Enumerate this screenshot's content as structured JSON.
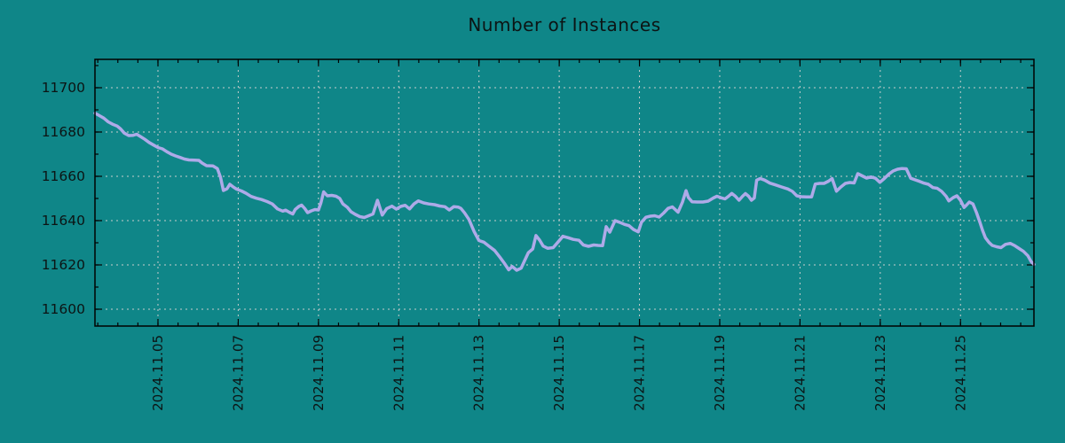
{
  "colors": {
    "background": "#0f8688",
    "line": "#aeaae8",
    "grid": "#c7cdcd",
    "axis": "#000000",
    "text": "#0c1414"
  },
  "chart_data": {
    "type": "line",
    "title": "Number of Instances",
    "xlabel": "",
    "ylabel": "",
    "legend": "none",
    "grid": true,
    "xlim": [
      3.43,
      26.83
    ],
    "ylim": [
      11592.4,
      11712.8
    ],
    "x_axis_unit": "day of November 2024",
    "x_tick_labels": [
      "2024.11.05",
      "2024.11.07",
      "2024.11.09",
      "2024.11.11",
      "2024.11.13",
      "2024.11.15",
      "2024.11.17",
      "2024.11.19",
      "2024.11.21",
      "2024.11.23",
      "2024.11.25"
    ],
    "x_tick_days": [
      5,
      7,
      9,
      11,
      13,
      15,
      17,
      19,
      21,
      23,
      25
    ],
    "x_minor_tick_step_days": 0.5,
    "y_tick_labels": [
      "11600",
      "11620",
      "11640",
      "11660",
      "11680",
      "11700"
    ],
    "y_tick_values": [
      11600,
      11620,
      11640,
      11660,
      11680,
      11700
    ],
    "y_minor_tick_step": 10,
    "series": [
      {
        "name": "instances",
        "x_days": [
          3.43,
          3.54,
          3.65,
          3.76,
          3.87,
          3.98,
          4.07,
          4.16,
          4.27,
          4.38,
          4.47,
          4.56,
          4.67,
          4.78,
          4.89,
          5.0,
          5.11,
          5.22,
          5.33,
          5.44,
          5.55,
          5.66,
          5.77,
          5.91,
          6.02,
          6.1,
          6.21,
          6.37,
          6.48,
          6.56,
          6.63,
          6.72,
          6.79,
          6.87,
          6.96,
          7.08,
          7.19,
          7.32,
          7.45,
          7.58,
          7.72,
          7.85,
          7.98,
          8.11,
          8.18,
          8.27,
          8.36,
          8.42,
          8.51,
          8.58,
          8.66,
          8.73,
          8.82,
          8.91,
          9.0,
          9.06,
          9.13,
          9.22,
          9.33,
          9.44,
          9.53,
          9.61,
          9.72,
          9.81,
          9.92,
          10.03,
          10.14,
          10.25,
          10.36,
          10.47,
          10.59,
          10.7,
          10.83,
          10.94,
          11.05,
          11.16,
          11.27,
          11.38,
          11.49,
          11.62,
          11.75,
          11.89,
          12.02,
          12.15,
          12.26,
          12.37,
          12.48,
          12.55,
          12.64,
          12.75,
          12.88,
          13.0,
          13.12,
          13.26,
          13.39,
          13.52,
          13.63,
          13.74,
          13.83,
          13.94,
          14.05,
          14.14,
          14.23,
          14.34,
          14.42,
          14.51,
          14.6,
          14.71,
          14.85,
          14.98,
          15.09,
          15.22,
          15.35,
          15.49,
          15.6,
          15.73,
          15.86,
          15.97,
          16.08,
          16.17,
          16.26,
          16.39,
          16.5,
          16.63,
          16.74,
          16.85,
          16.97,
          17.05,
          17.16,
          17.27,
          17.38,
          17.49,
          17.6,
          17.71,
          17.82,
          17.89,
          17.96,
          18.07,
          18.16,
          18.22,
          18.31,
          18.44,
          18.58,
          18.71,
          18.84,
          18.93,
          19.04,
          19.13,
          19.22,
          19.3,
          19.39,
          19.48,
          19.57,
          19.64,
          19.72,
          19.79,
          19.86,
          19.92,
          20.01,
          20.12,
          20.25,
          20.39,
          20.54,
          20.7,
          20.81,
          20.92,
          21.03,
          21.16,
          21.29,
          21.38,
          21.49,
          21.6,
          21.71,
          21.8,
          21.91,
          22.02,
          22.13,
          22.24,
          22.35,
          22.44,
          22.55,
          22.66,
          22.77,
          22.88,
          22.99,
          23.1,
          23.21,
          23.32,
          23.43,
          23.54,
          23.65,
          23.76,
          23.87,
          23.98,
          24.09,
          24.2,
          24.31,
          24.42,
          24.53,
          24.64,
          24.71,
          24.82,
          24.91,
          25.0,
          25.09,
          25.15,
          25.22,
          25.31,
          25.4,
          25.48,
          25.55,
          25.62,
          25.71,
          25.79,
          25.9,
          26.01,
          26.12,
          26.24,
          26.35,
          26.46,
          26.57,
          26.68,
          26.76,
          26.83
        ],
        "values": [
          11688.5,
          11687.4,
          11686.3,
          11684.6,
          11683.5,
          11682.7,
          11681.4,
          11679.5,
          11678.4,
          11678.5,
          11679.0,
          11678.0,
          11676.7,
          11675.3,
          11674.1,
          11673.0,
          11672.4,
          11671.1,
          11670.0,
          11669.2,
          11668.5,
          11667.8,
          11667.4,
          11667.3,
          11667.2,
          11666.0,
          11664.8,
          11664.7,
          11663.5,
          11659.5,
          11653.6,
          11654.4,
          11656.4,
          11655.3,
          11654.2,
          11653.4,
          11652.4,
          11650.9,
          11650.1,
          11649.5,
          11648.6,
          11647.5,
          11645.3,
          11644.3,
          11644.7,
          11643.8,
          11643.0,
          11645.0,
          11646.4,
          11647.0,
          11645.4,
          11643.6,
          11644.4,
          11645.0,
          11644.8,
          11648.0,
          11653.0,
          11651.2,
          11651.4,
          11651.0,
          11650.0,
          11647.5,
          11646.0,
          11644.0,
          11642.8,
          11641.8,
          11641.4,
          11642.2,
          11643.0,
          11649.2,
          11642.5,
          11645.4,
          11646.5,
          11645.2,
          11646.4,
          11646.9,
          11645.3,
          11647.5,
          11648.9,
          11648.0,
          11647.5,
          11647.2,
          11646.6,
          11646.3,
          11644.8,
          11646.3,
          11646.1,
          11645.5,
          11643.5,
          11640.5,
          11635.0,
          11631.0,
          11630.3,
          11628.3,
          11626.5,
          11623.5,
          11620.8,
          11617.8,
          11619.3,
          11617.6,
          11618.5,
          11622.0,
          11625.5,
          11627.2,
          11633.3,
          11631.2,
          11628.5,
          11627.5,
          11627.8,
          11630.5,
          11632.9,
          11632.3,
          11631.5,
          11631.1,
          11629.0,
          11628.4,
          11629.0,
          11628.8,
          11628.7,
          11637.3,
          11634.8,
          11640.0,
          11639.3,
          11638.3,
          11637.7,
          11636.0,
          11634.9,
          11639.3,
          11641.5,
          11642.0,
          11642.2,
          11641.6,
          11643.4,
          11645.5,
          11646.2,
          11645.0,
          11643.8,
          11648.3,
          11653.5,
          11650.4,
          11648.5,
          11648.4,
          11648.4,
          11648.8,
          11650.2,
          11651.0,
          11650.3,
          11649.8,
          11651.0,
          11652.3,
          11651.0,
          11649.2,
          11651.0,
          11652.2,
          11651.0,
          11649.2,
          11650.2,
          11658.3,
          11659.0,
          11658.3,
          11656.9,
          11656.1,
          11655.2,
          11654.3,
          11653.2,
          11651.2,
          11650.8,
          11650.7,
          11650.7,
          11656.5,
          11656.8,
          11656.8,
          11657.8,
          11659.0,
          11653.3,
          11655.2,
          11656.8,
          11657.2,
          11657.0,
          11661.2,
          11660.2,
          11659.2,
          11659.7,
          11659.1,
          11657.3,
          11659.0,
          11660.9,
          11662.4,
          11663.2,
          11663.5,
          11663.4,
          11659.1,
          11658.4,
          11657.7,
          11656.9,
          11656.4,
          11654.9,
          11654.6,
          11653.2,
          11651.0,
          11648.9,
          11650.4,
          11651.2,
          11649.1,
          11645.9,
          11647.0,
          11648.4,
          11647.5,
          11643.6,
          11639.4,
          11635.6,
          11632.3,
          11630.1,
          11628.8,
          11628.2,
          11627.8,
          11629.3,
          11629.7,
          11628.7,
          11627.4,
          11626.1,
          11624.1,
          11621.5,
          11620.2
        ]
      }
    ]
  }
}
